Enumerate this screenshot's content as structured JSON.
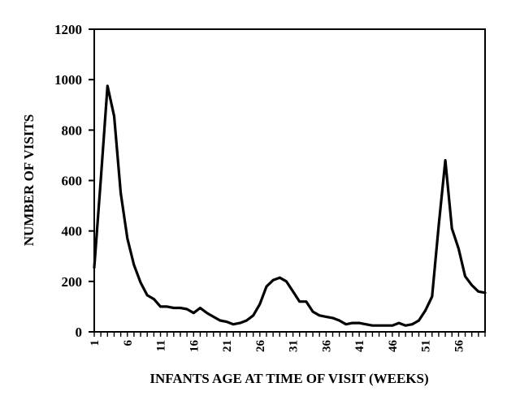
{
  "chart_data": {
    "type": "line",
    "title": "",
    "xlabel": "INFANTS AGE AT TIME OF VISIT (WEEKS)",
    "ylabel": "NUMBER OF VISITS",
    "xlim": [
      1,
      60
    ],
    "ylim": [
      0,
      1200
    ],
    "x_ticks": [
      1,
      6,
      11,
      16,
      21,
      26,
      31,
      36,
      41,
      46,
      51,
      56
    ],
    "y_ticks": [
      0,
      200,
      400,
      600,
      800,
      1000,
      1200
    ],
    "grid": false,
    "legend": "none",
    "line_color": "#000000",
    "series": [
      {
        "x": [
          1,
          2,
          3,
          4,
          5,
          6,
          7,
          8,
          9,
          10,
          11,
          12,
          13,
          14,
          15,
          16,
          17,
          18,
          19,
          20,
          21,
          22,
          23,
          24,
          25,
          26,
          27,
          28,
          29,
          30,
          31,
          32,
          33,
          34,
          35,
          36,
          37,
          38,
          39,
          40,
          41,
          42,
          43,
          44,
          45,
          46,
          47,
          48,
          49,
          50,
          51,
          52,
          53,
          54,
          55,
          56,
          57,
          58,
          59,
          60
        ],
        "values": [
          255,
          610,
          975,
          855,
          550,
          370,
          265,
          195,
          145,
          130,
          100,
          100,
          95,
          95,
          90,
          75,
          95,
          75,
          60,
          45,
          40,
          30,
          35,
          45,
          65,
          110,
          180,
          205,
          215,
          200,
          160,
          120,
          120,
          80,
          65,
          60,
          55,
          45,
          30,
          35,
          35,
          30,
          25,
          25,
          25,
          25,
          35,
          25,
          30,
          45,
          85,
          140,
          420,
          680,
          410,
          330,
          220,
          185,
          160,
          155
        ]
      }
    ]
  }
}
